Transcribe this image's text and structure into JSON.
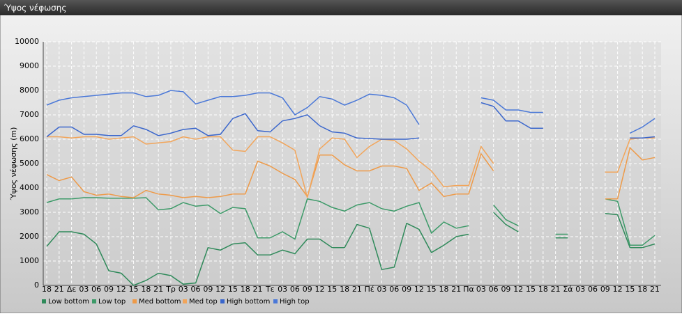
{
  "chart_data": {
    "type": "line",
    "title": "Ύψος νέφωσης",
    "y_label": "Ύψος νέφωσης (m)",
    "categories": [
      "18",
      "21",
      "Δε",
      "03",
      "06",
      "09",
      "12",
      "15",
      "18",
      "21",
      "Τρ",
      "03",
      "06",
      "09",
      "12",
      "15",
      "18",
      "21",
      "Τε",
      "03",
      "06",
      "09",
      "12",
      "15",
      "18",
      "21",
      "Πέ",
      "03",
      "06",
      "09",
      "12",
      "15",
      "18",
      "21",
      "Πα",
      "03",
      "06",
      "09",
      "12",
      "15",
      "18",
      "21",
      "Σά",
      "03",
      "06",
      "09",
      "12",
      "15",
      "18",
      "21"
    ],
    "ylim": [
      0,
      10000
    ],
    "yticks": [
      0,
      1000,
      2000,
      3000,
      4000,
      5000,
      6000,
      7000,
      8000,
      9000,
      10000
    ],
    "grid": true,
    "series": [
      {
        "name": "Low bottom",
        "color": "#2f8a5a",
        "values": [
          1600,
          2200,
          2200,
          2100,
          1700,
          600,
          500,
          0,
          200,
          500,
          400,
          50,
          100,
          1550,
          1450,
          1700,
          1750,
          1250,
          1250,
          1450,
          1300,
          1900,
          1900,
          1550,
          1550,
          2500,
          2350,
          650,
          750,
          2550,
          2300,
          1350,
          1650,
          2000,
          2100,
          null,
          3000,
          2500,
          2200,
          null,
          null,
          1950,
          1950,
          null,
          null,
          2950,
          2900,
          1550,
          1550,
          1700
        ]
      },
      {
        "name": "Low top",
        "color": "#3c9a68",
        "values": [
          3400,
          3550,
          3550,
          3600,
          3600,
          3580,
          3580,
          3580,
          3600,
          3100,
          3150,
          3400,
          3250,
          3300,
          2950,
          3200,
          3150,
          1950,
          1950,
          2200,
          1900,
          3550,
          3450,
          3200,
          3050,
          3300,
          3400,
          3150,
          3050,
          3250,
          3400,
          2150,
          2600,
          2350,
          2450,
          null,
          3300,
          2700,
          2450,
          null,
          null,
          2100,
          2100,
          null,
          null,
          3550,
          3450,
          1650,
          1650,
          2050
        ]
      },
      {
        "name": "Med bottom",
        "color": "#ee9a48",
        "values": [
          4550,
          4300,
          4450,
          3850,
          3700,
          3750,
          3650,
          3600,
          3900,
          3750,
          3700,
          3600,
          3650,
          3600,
          3650,
          3750,
          3750,
          5100,
          4900,
          4600,
          4350,
          3650,
          5350,
          5350,
          4950,
          4700,
          4700,
          4900,
          4900,
          4800,
          3900,
          4200,
          3650,
          3750,
          3750,
          5400,
          4700,
          null,
          null,
          null,
          null,
          null,
          null,
          null,
          null,
          3550,
          3550,
          5650,
          5150,
          5250
        ]
      },
      {
        "name": "Med top",
        "color": "#f2a55a",
        "values": [
          6100,
          6100,
          6050,
          6100,
          6100,
          6000,
          6050,
          6100,
          5800,
          5850,
          5900,
          6100,
          6000,
          6100,
          6100,
          5550,
          5500,
          6100,
          6100,
          5850,
          5550,
          3600,
          5600,
          6050,
          6000,
          5250,
          5700,
          6000,
          5950,
          5600,
          5100,
          4700,
          4050,
          4100,
          4100,
          5700,
          5000,
          null,
          null,
          null,
          null,
          null,
          null,
          null,
          null,
          4650,
          4650,
          6000,
          6050,
          6050
        ]
      },
      {
        "name": "High bottom",
        "color": "#3a66cc",
        "values": [
          6100,
          6500,
          6500,
          6200,
          6200,
          6150,
          6150,
          6550,
          6400,
          6150,
          6250,
          6400,
          6450,
          6150,
          6200,
          6850,
          7050,
          6350,
          6300,
          6750,
          6850,
          7000,
          6550,
          6300,
          6250,
          6050,
          6030,
          6000,
          6000,
          6000,
          6050,
          null,
          null,
          null,
          null,
          7500,
          7350,
          6750,
          6750,
          6450,
          6450,
          null,
          null,
          null,
          null,
          null,
          null,
          6050,
          6050,
          6100
        ]
      },
      {
        "name": "High top",
        "color": "#4a78d8",
        "values": [
          7400,
          7600,
          7700,
          7750,
          7800,
          7850,
          7900,
          7900,
          7750,
          7800,
          8000,
          7950,
          7450,
          7600,
          7750,
          7750,
          7800,
          7900,
          7900,
          7700,
          7000,
          7300,
          7750,
          7650,
          7400,
          7600,
          7850,
          7800,
          7700,
          7400,
          6600,
          null,
          null,
          null,
          null,
          7700,
          7600,
          7200,
          7200,
          7100,
          7100,
          null,
          null,
          null,
          null,
          null,
          null,
          6250,
          6500,
          6850
        ]
      }
    ]
  }
}
